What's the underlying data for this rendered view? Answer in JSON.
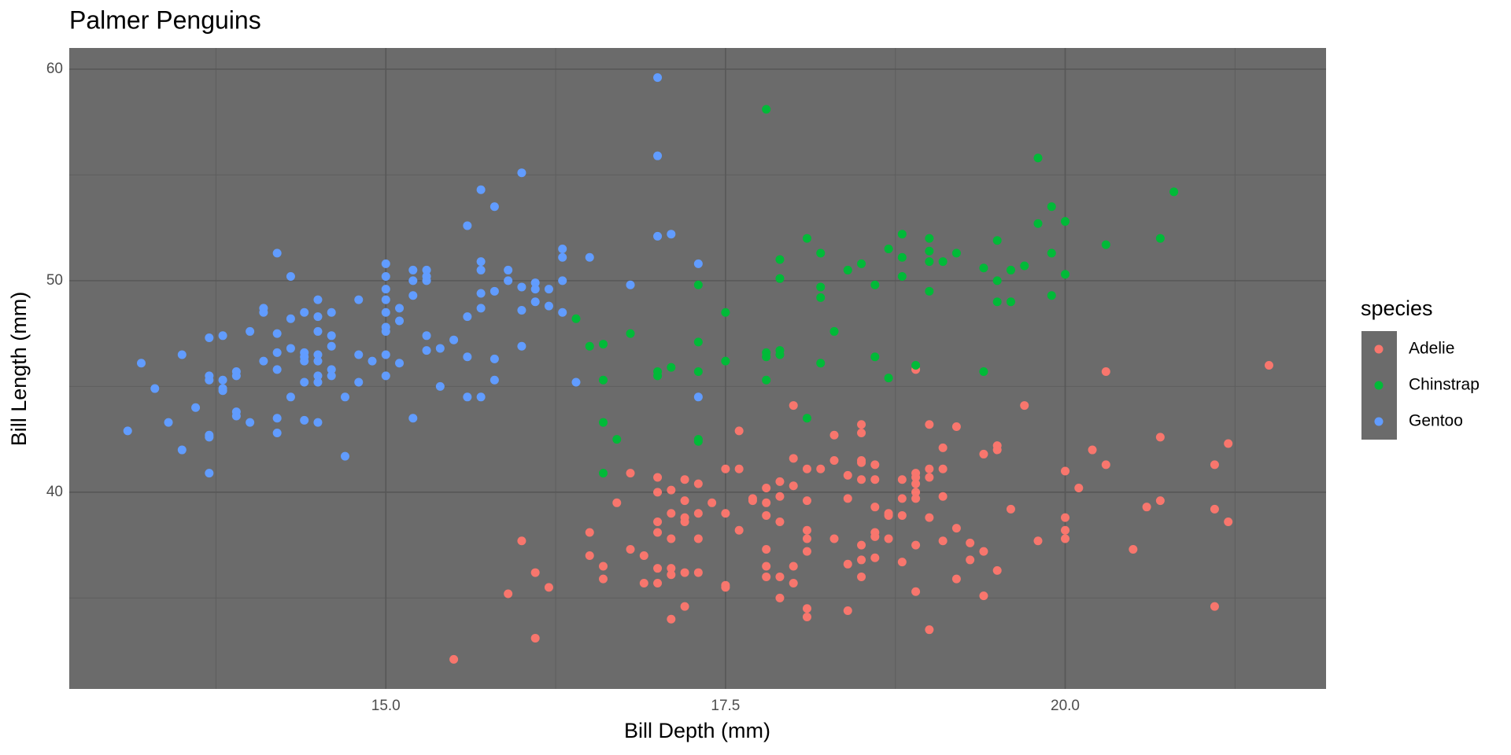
{
  "chart_data": {
    "type": "scatter",
    "title": "Palmer Penguins",
    "x_label": "Bill Depth (mm)",
    "y_label": "Bill Length (mm)",
    "legend_title": "species",
    "xlim": [
      12.67,
      21.92
    ],
    "ylim": [
      30.7,
      61.0
    ],
    "xticks": [
      {
        "value": 15,
        "label": "15.0"
      },
      {
        "value": 17.5,
        "label": "17.5"
      },
      {
        "value": 20,
        "label": "20.0"
      }
    ],
    "yticks": [
      40,
      50,
      60
    ],
    "grid": true,
    "minor_grid": true,
    "legend": "right",
    "series": [
      {
        "name": "Adelie",
        "color": "#F8766D",
        "x": [
          15.5,
          15.9,
          16.0,
          16.1,
          16.1,
          16.2,
          16.5,
          16.5,
          16.6,
          16.6,
          16.7,
          16.8,
          16.8,
          16.9,
          16.9,
          17.0,
          17.0,
          17.0,
          17.0,
          17.0,
          17.0,
          17.1,
          17.1,
          17.1,
          17.1,
          17.1,
          17.1,
          17.2,
          17.2,
          17.2,
          17.2,
          17.2,
          17.2,
          17.3,
          17.3,
          17.3,
          17.3,
          17.4,
          17.5,
          17.5,
          17.5,
          17.5,
          17.6,
          17.6,
          17.6,
          17.7,
          17.7,
          17.8,
          17.8,
          17.8,
          17.8,
          17.8,
          17.8,
          17.9,
          17.9,
          17.9,
          17.9,
          17.9,
          18.0,
          18.0,
          18.0,
          18.0,
          18.0,
          18.1,
          18.1,
          18.1,
          18.1,
          18.1,
          18.1,
          18.1,
          18.2,
          18.3,
          18.3,
          18.3,
          18.4,
          18.4,
          18.4,
          18.4,
          18.5,
          18.5,
          18.5,
          18.5,
          18.5,
          18.5,
          18.5,
          18.5,
          18.6,
          18.6,
          18.6,
          18.6,
          18.6,
          18.6,
          18.7,
          18.7,
          18.7,
          18.8,
          18.8,
          18.8,
          18.8,
          18.9,
          18.9,
          18.9,
          18.9,
          18.9,
          18.9,
          18.9,
          18.9,
          19.0,
          19.0,
          19.0,
          19.0,
          19.0,
          19.1,
          19.1,
          19.1,
          19.1,
          19.2,
          19.2,
          19.2,
          19.3,
          19.3,
          19.4,
          19.4,
          19.4,
          19.5,
          19.5,
          19.5,
          19.6,
          19.7,
          19.8,
          20.0,
          20.0,
          20.0,
          20.0,
          20.1,
          20.2,
          20.3,
          20.3,
          20.5,
          20.6,
          20.7,
          20.7,
          21.1,
          21.1,
          21.1,
          21.2,
          21.2,
          21.5
        ],
        "values": [
          32.1,
          35.2,
          37.7,
          36.2,
          33.1,
          35.5,
          38.1,
          37.0,
          36.5,
          35.9,
          39.5,
          40.9,
          37.3,
          37.0,
          35.7,
          40.7,
          40.0,
          38.6,
          38.1,
          36.4,
          35.7,
          40.1,
          39.0,
          37.8,
          36.4,
          36.1,
          34.0,
          40.6,
          39.6,
          38.8,
          38.6,
          36.2,
          34.6,
          40.4,
          39.0,
          37.8,
          36.2,
          39.5,
          41.1,
          39.0,
          35.6,
          35.5,
          42.9,
          41.1,
          38.2,
          39.7,
          39.6,
          40.2,
          39.5,
          38.9,
          37.3,
          36.5,
          36.0,
          40.5,
          39.8,
          38.6,
          36.0,
          35.0,
          44.1,
          41.6,
          40.3,
          36.5,
          35.7,
          41.1,
          39.6,
          38.2,
          37.8,
          37.2,
          34.5,
          34.1,
          41.1,
          42.7,
          41.5,
          37.8,
          40.8,
          39.7,
          36.6,
          34.4,
          43.2,
          42.8,
          41.5,
          41.4,
          40.6,
          37.5,
          36.8,
          36.0,
          41.3,
          40.6,
          39.3,
          38.1,
          37.9,
          36.9,
          39.0,
          38.9,
          37.8,
          40.6,
          39.7,
          38.9,
          36.7,
          45.8,
          40.9,
          40.7,
          40.4,
          40.0,
          39.7,
          37.5,
          35.3,
          43.2,
          41.1,
          40.7,
          38.8,
          33.5,
          42.1,
          41.1,
          39.8,
          37.7,
          43.1,
          38.3,
          35.9,
          37.6,
          36.8,
          41.8,
          37.2,
          35.1,
          42.2,
          42.0,
          36.3,
          39.2,
          44.1,
          37.7,
          41.0,
          38.8,
          38.2,
          37.8,
          40.2,
          42.0,
          45.7,
          41.3,
          37.3,
          39.3,
          42.6,
          39.6,
          41.3,
          39.2,
          34.6,
          42.3,
          38.6,
          46.0
        ]
      },
      {
        "name": "Chinstrap",
        "color": "#00BA38",
        "x": [
          16.4,
          16.5,
          16.6,
          16.6,
          16.6,
          16.6,
          16.7,
          16.8,
          17.0,
          17.0,
          17.1,
          17.3,
          17.3,
          17.3,
          17.3,
          17.3,
          17.5,
          17.5,
          17.8,
          17.8,
          17.8,
          17.8,
          17.9,
          17.9,
          17.9,
          17.9,
          18.1,
          18.1,
          18.2,
          18.2,
          18.2,
          18.2,
          18.3,
          18.4,
          18.5,
          18.6,
          18.6,
          18.7,
          18.7,
          18.8,
          18.8,
          18.8,
          18.9,
          19.0,
          19.0,
          19.0,
          19.0,
          19.1,
          19.2,
          19.4,
          19.4,
          19.5,
          19.5,
          19.5,
          19.6,
          19.6,
          19.7,
          19.8,
          19.8,
          19.9,
          19.9,
          19.9,
          20.0,
          20.0,
          20.3,
          20.7,
          20.8
        ],
        "values": [
          48.2,
          46.9,
          47.0,
          45.3,
          43.3,
          40.9,
          42.5,
          47.5,
          45.7,
          45.5,
          45.9,
          49.8,
          47.1,
          45.7,
          42.5,
          42.4,
          48.5,
          46.2,
          58.1,
          46.6,
          46.4,
          45.3,
          51.0,
          50.1,
          46.7,
          46.5,
          52.0,
          43.5,
          51.3,
          49.7,
          49.2,
          46.1,
          47.6,
          50.5,
          50.8,
          49.8,
          46.4,
          51.5,
          45.4,
          52.2,
          51.1,
          50.2,
          46.0,
          52.0,
          51.4,
          50.9,
          49.5,
          50.9,
          51.3,
          50.6,
          45.7,
          51.9,
          50.0,
          49.0,
          50.5,
          49.0,
          50.7,
          55.8,
          52.7,
          53.5,
          51.3,
          49.3,
          52.8,
          50.3,
          51.7,
          52.0,
          54.2
        ]
      },
      {
        "name": "Gentoo",
        "color": "#619CFF",
        "x": [
          13.1,
          13.2,
          13.3,
          13.4,
          13.5,
          13.5,
          13.6,
          13.7,
          13.7,
          13.7,
          13.7,
          13.7,
          13.7,
          13.8,
          13.8,
          13.8,
          13.8,
          13.9,
          13.9,
          13.9,
          13.9,
          14.0,
          14.0,
          14.1,
          14.1,
          14.1,
          14.2,
          14.2,
          14.2,
          14.2,
          14.2,
          14.2,
          14.3,
          14.3,
          14.3,
          14.3,
          14.4,
          14.4,
          14.4,
          14.4,
          14.4,
          14.4,
          14.5,
          14.5,
          14.5,
          14.5,
          14.5,
          14.5,
          14.5,
          14.5,
          14.6,
          14.6,
          14.6,
          14.6,
          14.6,
          14.7,
          14.7,
          14.8,
          14.8,
          14.8,
          14.9,
          15.0,
          15.0,
          15.0,
          15.0,
          15.0,
          15.0,
          15.0,
          15.0,
          15.0,
          15.1,
          15.1,
          15.1,
          15.2,
          15.2,
          15.2,
          15.2,
          15.3,
          15.3,
          15.3,
          15.3,
          15.3,
          15.4,
          15.4,
          15.5,
          15.6,
          15.6,
          15.6,
          15.6,
          15.7,
          15.7,
          15.7,
          15.7,
          15.7,
          15.7,
          15.8,
          15.8,
          15.8,
          15.8,
          15.9,
          15.9,
          16.0,
          16.0,
          16.0,
          16.0,
          16.1,
          16.1,
          16.1,
          16.2,
          16.2,
          16.3,
          16.3,
          16.3,
          16.3,
          16.4,
          16.5,
          16.8,
          17.0,
          17.0,
          17.0,
          17.1,
          17.3,
          17.3
        ],
        "values": [
          42.9,
          46.1,
          44.9,
          43.3,
          46.5,
          42.0,
          44.0,
          47.3,
          45.5,
          45.3,
          42.7,
          42.6,
          40.9,
          47.4,
          45.3,
          44.9,
          44.8,
          45.7,
          45.5,
          43.8,
          43.6,
          47.6,
          43.3,
          48.7,
          48.5,
          46.2,
          51.3,
          47.5,
          46.6,
          45.8,
          43.5,
          42.8,
          50.2,
          48.2,
          46.8,
          44.5,
          48.5,
          46.6,
          46.4,
          46.2,
          45.2,
          43.4,
          49.1,
          48.3,
          47.6,
          46.5,
          46.2,
          45.5,
          45.2,
          43.3,
          48.5,
          47.4,
          46.9,
          45.8,
          45.5,
          44.5,
          41.7,
          49.1,
          46.5,
          45.2,
          46.2,
          50.8,
          50.2,
          49.6,
          49.1,
          48.5,
          47.8,
          47.6,
          46.5,
          45.5,
          48.7,
          48.1,
          46.1,
          50.5,
          50.0,
          49.3,
          43.5,
          50.5,
          50.2,
          50.0,
          47.4,
          46.7,
          46.8,
          45.0,
          47.2,
          52.6,
          48.3,
          46.4,
          44.5,
          54.3,
          50.9,
          50.5,
          49.4,
          48.7,
          44.5,
          53.5,
          49.5,
          46.3,
          45.3,
          50.5,
          50.0,
          55.1,
          49.7,
          48.6,
          46.9,
          49.9,
          49.6,
          49.0,
          49.6,
          48.8,
          51.5,
          51.1,
          50.0,
          48.5,
          45.2,
          51.1,
          49.8,
          59.6,
          55.9,
          52.1,
          52.2,
          50.8,
          44.5
        ]
      }
    ]
  }
}
